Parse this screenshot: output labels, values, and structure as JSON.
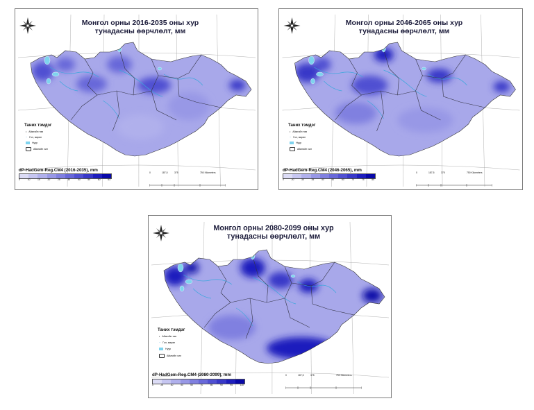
{
  "legend_shared": {
    "heading": "Таних тэмдэг",
    "items": [
      "Аймгийн төв",
      "Гол, мөрөн",
      "Нуур",
      "Аймгийн хил"
    ]
  },
  "colors": {
    "ramp": [
      "#dcdcf6",
      "#c6c6f1",
      "#b0b0ec",
      "#9898e6",
      "#8080e0",
      "#6868d9",
      "#5050d2",
      "#3838c8",
      "#1e1ebd",
      "#0808a8"
    ],
    "country_base": "#a8a8ea",
    "lake": "#7fd3ee",
    "river": "#3aa7dd",
    "border": "#333344"
  },
  "scalebar": {
    "ticks": [
      "0",
      "187,5",
      "375",
      "750 Kilometers"
    ]
  },
  "panels": [
    {
      "title_line1": "Монгол орны 2016-2035 оны хур",
      "title_line2": "тунадасны өөрчлөлт, мм",
      "ramp_title": "dP-HadGem-Reg.CM4 (2016-2035), mm",
      "ramp_ticks": [
        "0",
        "10",
        "15",
        "20",
        "25",
        "30",
        "40",
        "50",
        "60",
        "63"
      ]
    },
    {
      "title_line1": "Монгол орны 2046-2065 оны хур",
      "title_line2": "тунадасны өөрчлөлт, мм",
      "ramp_title": "dP-HadGem-Reg.CM4 (2046-2065), mm",
      "ramp_ticks": [
        "0",
        "20",
        "30",
        "35",
        "40",
        "50",
        "60",
        "70",
        "75",
        "85"
      ]
    },
    {
      "title_line1": "Монгол орны 2080-2099 оны хур",
      "title_line2": "тунадасны өөрчлөлт, мм",
      "ramp_title": "dP-HadGem-Reg.CM4 (2080-2099), mm",
      "ramp_ticks": [
        "0",
        "25",
        "30",
        "40",
        "50",
        "70",
        "80",
        "90",
        "95",
        "110"
      ]
    }
  ]
}
